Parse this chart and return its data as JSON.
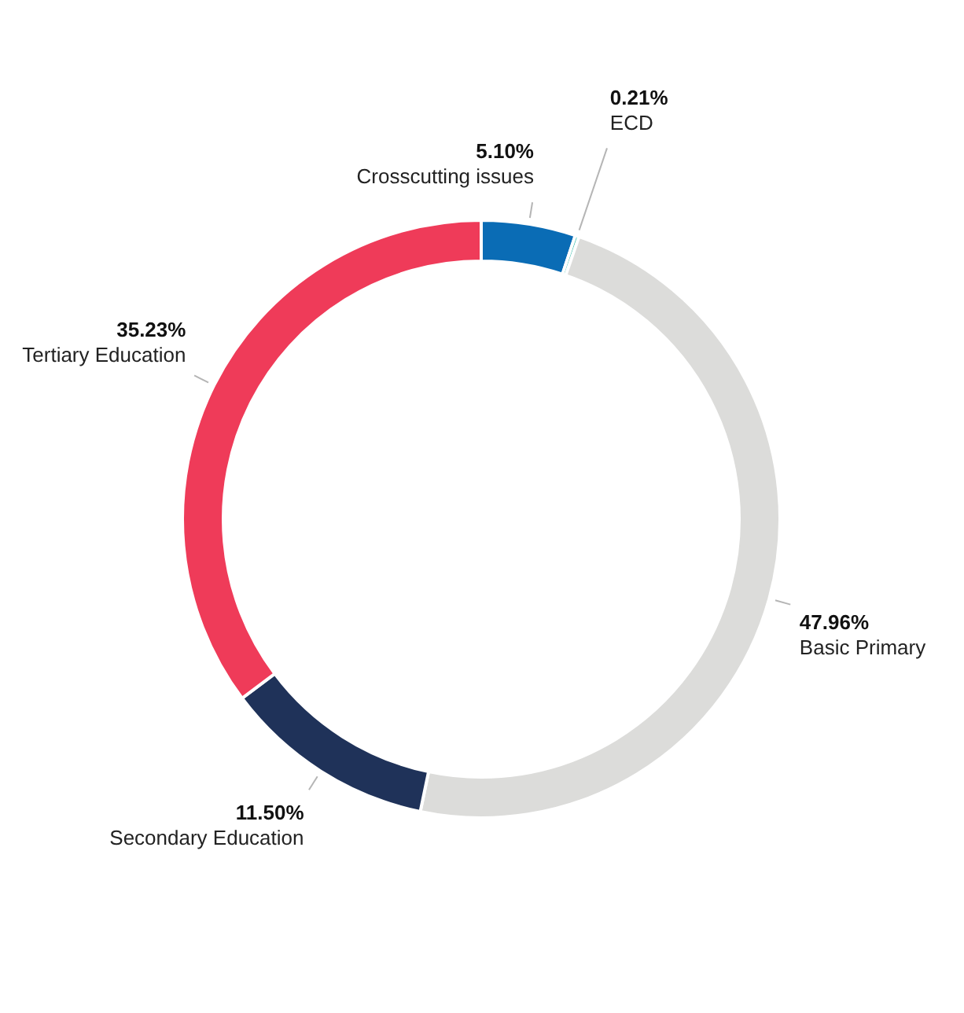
{
  "chart_data": {
    "type": "donut",
    "categories": [
      "Crosscutting issues",
      "ECD",
      "Basic Primary",
      "Secondary Education",
      "Tertiary Education"
    ],
    "values": [
      5.1,
      0.21,
      47.96,
      11.5,
      35.23
    ],
    "value_labels": [
      "5.10%",
      "0.21%",
      "47.96%",
      "11.50%",
      "35.23%"
    ],
    "colors": [
      "#0a6cb5",
      "#4cc3b5",
      "#dcdcda",
      "#1f3259",
      "#ef3b59"
    ]
  }
}
